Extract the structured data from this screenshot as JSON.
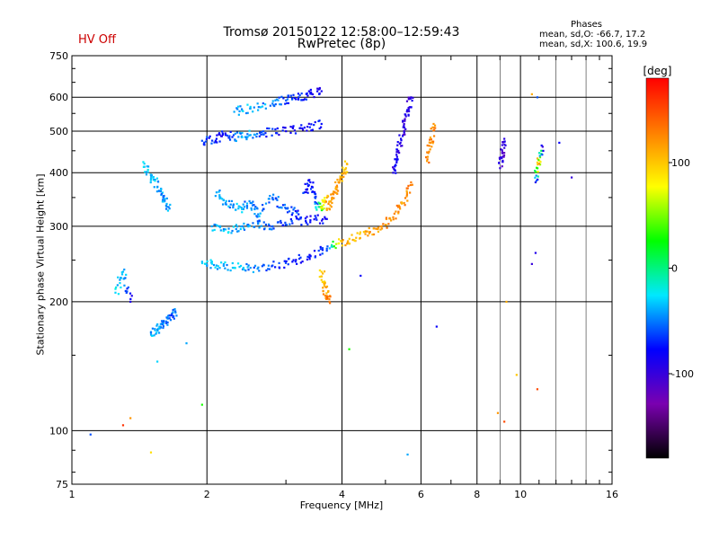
{
  "header": {
    "hv_status": "HV Off",
    "title_line1": "Tromsø 20150122 12:58:00–12:59:43",
    "title_line2": "RwPretec (8p)"
  },
  "phases_box": {
    "heading": "Phases",
    "line_o": "mean, sd,O: -66.7, 17.2",
    "line_x": "mean, sd,X: 100.6, 19.9"
  },
  "colors": {
    "hv_status": "#cc0000",
    "grid": "#000000",
    "background": "#ffffff"
  },
  "chart_data": {
    "type": "scatter",
    "xlabel": "Frequency [MHz]",
    "ylabel": "Stationary phase Virtual Height [km]",
    "x_scale": "log2",
    "y_scale": "log",
    "xlim": [
      1,
      16
    ],
    "ylim": [
      75,
      750
    ],
    "x_ticks": [
      1,
      2,
      4,
      6,
      8,
      10,
      16
    ],
    "x_tick_labels": [
      "1",
      "2",
      "4",
      "6",
      "8",
      "10",
      "16"
    ],
    "y_ticks": [
      75,
      100,
      200,
      300,
      400,
      500,
      600,
      750
    ],
    "y_tick_labels": [
      "75",
      "100",
      "200",
      "300",
      "400",
      "500",
      "600",
      "750"
    ],
    "grid": true,
    "colorbar": {
      "label": "[deg]",
      "range": [
        -180,
        180
      ],
      "ticks": [
        -100,
        0,
        100
      ],
      "tick_labels": [
        "-100",
        "0",
        "100"
      ],
      "stops": [
        "#000000",
        "#7a00b0",
        "#0000ff",
        "#00e8ff",
        "#00ff00",
        "#ffff00",
        "#ff7f00",
        "#ff0000"
      ]
    },
    "series": [
      {
        "segments": [
          {
            "x": [
              1.95,
              2.1,
              2.3,
              2.5,
              2.8,
              3.1,
              3.4,
              3.7,
              4.0,
              4.3,
              4.6,
              4.9,
              5.2,
              5.5,
              5.7
            ],
            "y": [
              248,
              243,
              240,
              240,
              243,
              248,
              256,
              266,
              276,
              282,
              289,
              300,
              315,
              340,
              380
            ],
            "phase": [
              -35,
              -40,
              -35,
              -45,
              -60,
              -75,
              -85,
              -60,
              110,
              105,
              115,
              120,
              125,
              120,
              130
            ]
          },
          {
            "x": [
              2.05,
              2.2,
              2.4,
              2.6,
              2.8,
              3.1,
              3.4,
              3.7
            ],
            "y": [
              300,
              295,
              300,
              305,
              300,
              305,
              310,
              312
            ],
            "phase": [
              -40,
              -35,
              -45,
              -50,
              -55,
              -70,
              -75,
              -80
            ]
          },
          {
            "x": [
              1.95,
              2.1,
              2.2,
              2.35,
              2.5,
              2.7,
              3.0,
              3.3,
              3.6
            ],
            "y": [
              475,
              480,
              490,
              485,
              490,
              495,
              500,
              510,
              520
            ],
            "phase": [
              -60,
              -75,
              -80,
              -45,
              -40,
              -70,
              -85,
              -80,
              -75
            ]
          },
          {
            "x": [
              2.3,
              2.5,
              2.8,
              3.0,
              3.2,
              3.4,
              3.6
            ],
            "y": [
              555,
              565,
              580,
              590,
              600,
              612,
              620
            ],
            "phase": [
              -40,
              -35,
              -50,
              -60,
              -70,
              -80,
              -85
            ]
          },
          {
            "x": [
              2.1,
              2.2,
              2.35,
              2.5,
              2.6,
              2.8,
              3.0,
              3.2
            ],
            "y": [
              360,
              340,
              330,
              340,
              320,
              350,
              330,
              320
            ],
            "phase": [
              -40,
              -45,
              -35,
              -50,
              -45,
              -55,
              -60,
              -70
            ]
          },
          {
            "x": [
              3.3,
              3.4,
              3.5,
              3.6,
              3.7
            ],
            "y": [
              360,
              380,
              340,
              330,
              350
            ],
            "phase": [
              -70,
              -80,
              -75,
              60,
              110
            ]
          },
          {
            "x": [
              3.7,
              3.8,
              3.9,
              4.0,
              4.1
            ],
            "y": [
              330,
              350,
              370,
              390,
              420
            ],
            "phase": [
              110,
              120,
              115,
              110,
              105
            ]
          },
          {
            "x": [
              5.2,
              5.3,
              5.4,
              5.5,
              5.6,
              5.7
            ],
            "y": [
              400,
              430,
              470,
              520,
              560,
              600
            ],
            "phase": [
              -90,
              -85,
              -95,
              -100,
              -90,
              -95
            ]
          },
          {
            "x": [
              3.6,
              3.65,
              3.7,
              3.75
            ],
            "y": [
              235,
              220,
              205,
              200
            ],
            "phase": [
              95,
              110,
              120,
              130
            ]
          },
          {
            "x": [
              1.45,
              1.5,
              1.55,
              1.6,
              1.65
            ],
            "y": [
              420,
              395,
              370,
              350,
              330
            ],
            "phase": [
              -30,
              -40,
              -35,
              -50,
              -45
            ]
          },
          {
            "x": [
              1.5,
              1.55,
              1.6,
              1.65,
              1.7
            ],
            "y": [
              170,
              172,
              178,
              183,
              190
            ],
            "phase": [
              -40,
              -45,
              -50,
              -60,
              -55
            ]
          },
          {
            "x": [
              1.25,
              1.3,
              1.35
            ],
            "y": [
              210,
              235,
              200
            ],
            "phase": [
              -30,
              -35,
              -90
            ]
          },
          {
            "x": [
              6.2,
              6.3,
              6.4
            ],
            "y": [
              430,
              470,
              520
            ],
            "phase": [
              130,
              125,
              120
            ]
          },
          {
            "x": [
              9.0,
              9.1,
              9.2
            ],
            "y": [
              410,
              445,
              480
            ],
            "phase": [
              -100,
              -110,
              -95
            ]
          },
          {
            "x": [
              10.8,
              11.0,
              11.2
            ],
            "y": [
              380,
              420,
              460
            ],
            "phase": [
              -90,
              120,
              -100
            ]
          }
        ]
      }
    ],
    "isolated_points": {
      "x": [
        1.1,
        1.3,
        1.35,
        1.5,
        1.55,
        1.8,
        1.95,
        4.15,
        4.4,
        5.6,
        6.5,
        8.9,
        9.2,
        9.3,
        9.8,
        10.6,
        10.8,
        10.9,
        12.2,
        13.0,
        10.9,
        10.6
      ],
      "y": [
        98,
        103,
        107,
        89,
        145,
        160,
        115,
        155,
        230,
        88,
        175,
        110,
        105,
        200,
        135,
        245,
        260,
        125,
        470,
        390,
        600,
        610
      ],
      "phase": [
        -60,
        160,
        120,
        90,
        -30,
        -40,
        30,
        30,
        -80,
        -40,
        -80,
        120,
        150,
        110,
        100,
        -100,
        -90,
        150,
        -80,
        -100,
        -60,
        110
      ]
    }
  }
}
